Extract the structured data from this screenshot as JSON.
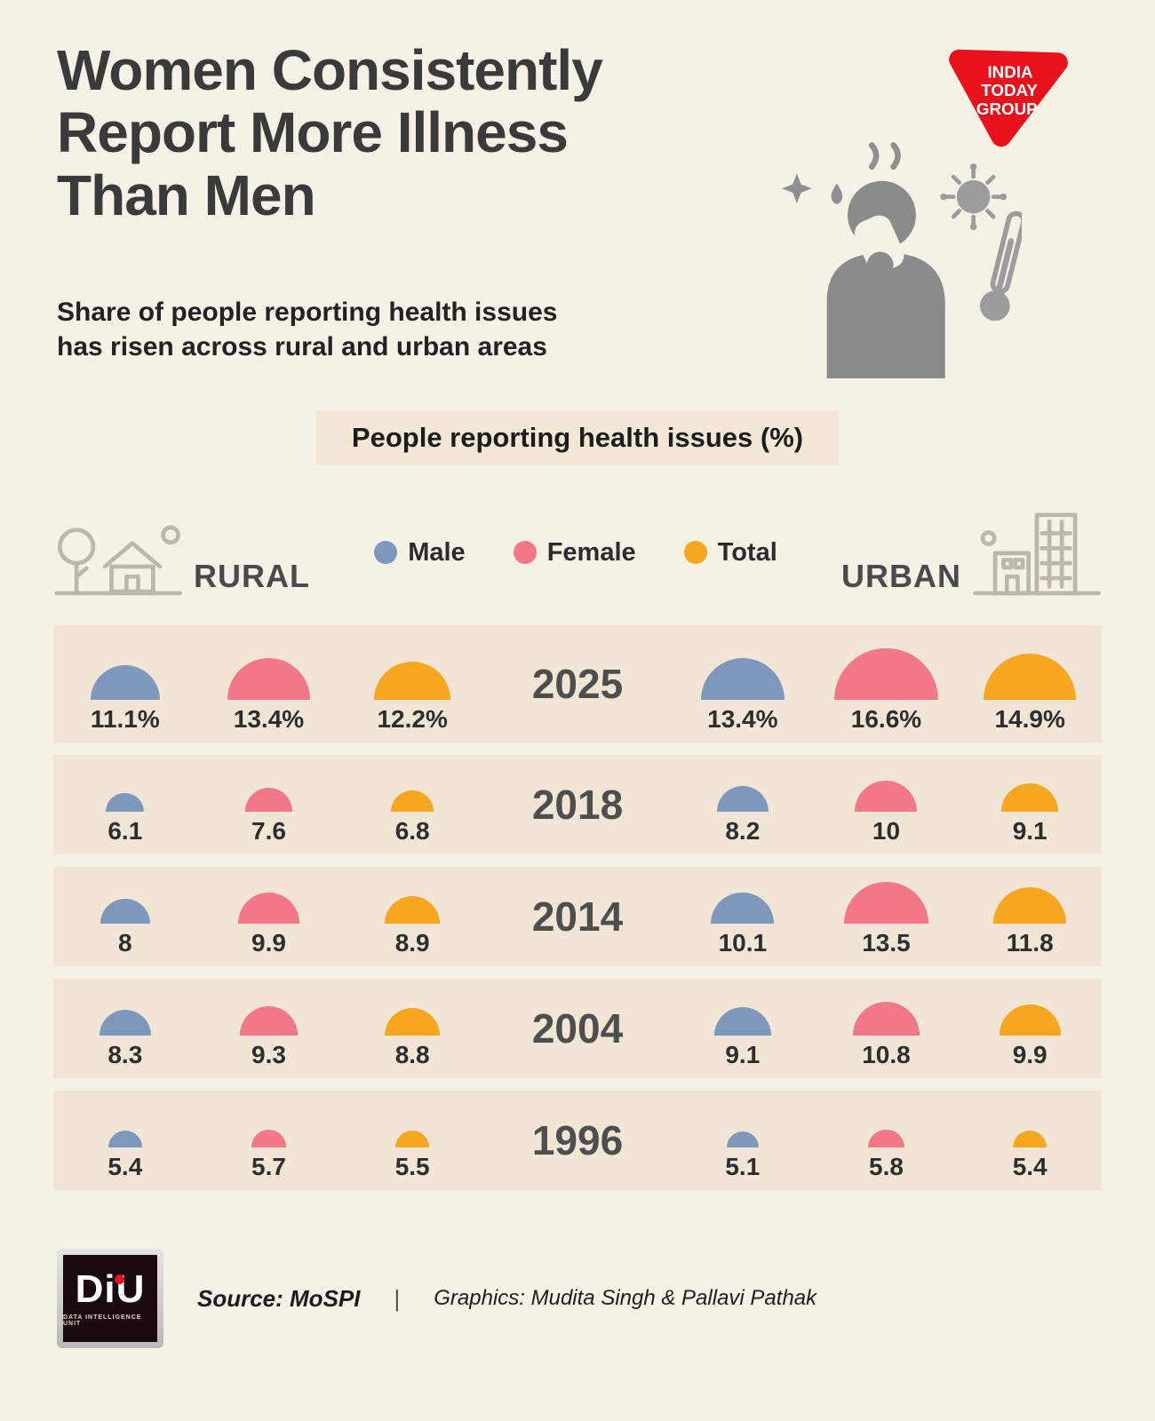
{
  "header": {
    "title_lines": [
      "Women Consistently",
      "Report More Illness",
      "Than Men"
    ],
    "subtitle_lines": [
      "Share of people reporting health issues",
      "has risen across rural and urban areas"
    ],
    "brand": {
      "lines": [
        "INDIA",
        "TODAY",
        "GROUP"
      ],
      "color": "#e8121c"
    }
  },
  "chart_data": {
    "type": "bar",
    "title": "People reporting health issues (%)",
    "unit": "%",
    "group_left": "RURAL",
    "group_right": "URBAN",
    "legend": [
      {
        "label": "Male",
        "color": "#7d98ba"
      },
      {
        "label": "Female",
        "color": "#f27888"
      },
      {
        "label": "Total",
        "color": "#f6a71f"
      }
    ],
    "years": [
      "2025",
      "2018",
      "2014",
      "2004",
      "1996"
    ],
    "series_order": [
      "Male",
      "Female",
      "Total"
    ],
    "rows": [
      {
        "year": "2025",
        "cells": [
          {
            "group": "RURAL",
            "series": "Male",
            "value": 11.1,
            "label": "11.1%"
          },
          {
            "group": "RURAL",
            "series": "Female",
            "value": 13.4,
            "label": "13.4%"
          },
          {
            "group": "RURAL",
            "series": "Total",
            "value": 12.2,
            "label": "12.2%"
          },
          {
            "group": "URBAN",
            "series": "Male",
            "value": 13.4,
            "label": "13.4%"
          },
          {
            "group": "URBAN",
            "series": "Female",
            "value": 16.6,
            "label": "16.6%"
          },
          {
            "group": "URBAN",
            "series": "Total",
            "value": 14.9,
            "label": "14.9%"
          }
        ]
      },
      {
        "year": "2018",
        "cells": [
          {
            "group": "RURAL",
            "series": "Male",
            "value": 6.1,
            "label": "6.1"
          },
          {
            "group": "RURAL",
            "series": "Female",
            "value": 7.6,
            "label": "7.6"
          },
          {
            "group": "RURAL",
            "series": "Total",
            "value": 6.8,
            "label": "6.8"
          },
          {
            "group": "URBAN",
            "series": "Male",
            "value": 8.2,
            "label": "8.2"
          },
          {
            "group": "URBAN",
            "series": "Female",
            "value": 10,
            "label": "10"
          },
          {
            "group": "URBAN",
            "series": "Total",
            "value": 9.1,
            "label": "9.1"
          }
        ]
      },
      {
        "year": "2014",
        "cells": [
          {
            "group": "RURAL",
            "series": "Male",
            "value": 8,
            "label": "8"
          },
          {
            "group": "RURAL",
            "series": "Female",
            "value": 9.9,
            "label": "9.9"
          },
          {
            "group": "RURAL",
            "series": "Total",
            "value": 8.9,
            "label": "8.9"
          },
          {
            "group": "URBAN",
            "series": "Male",
            "value": 10.1,
            "label": "10.1"
          },
          {
            "group": "URBAN",
            "series": "Female",
            "value": 13.5,
            "label": "13.5"
          },
          {
            "group": "URBAN",
            "series": "Total",
            "value": 11.8,
            "label": "11.8"
          }
        ]
      },
      {
        "year": "2004",
        "cells": [
          {
            "group": "RURAL",
            "series": "Male",
            "value": 8.3,
            "label": "8.3"
          },
          {
            "group": "RURAL",
            "series": "Female",
            "value": 9.3,
            "label": "9.3"
          },
          {
            "group": "RURAL",
            "series": "Total",
            "value": 8.8,
            "label": "8.8"
          },
          {
            "group": "URBAN",
            "series": "Male",
            "value": 9.1,
            "label": "9.1"
          },
          {
            "group": "URBAN",
            "series": "Female",
            "value": 10.8,
            "label": "10.8"
          },
          {
            "group": "URBAN",
            "series": "Total",
            "value": 9.9,
            "label": "9.9"
          }
        ]
      },
      {
        "year": "1996",
        "cells": [
          {
            "group": "RURAL",
            "series": "Male",
            "value": 5.4,
            "label": "5.4"
          },
          {
            "group": "RURAL",
            "series": "Female",
            "value": 5.7,
            "label": "5.7"
          },
          {
            "group": "RURAL",
            "series": "Total",
            "value": 5.5,
            "label": "5.5"
          },
          {
            "group": "URBAN",
            "series": "Male",
            "value": 5.1,
            "label": "5.1"
          },
          {
            "group": "URBAN",
            "series": "Female",
            "value": 5.8,
            "label": "5.8"
          },
          {
            "group": "URBAN",
            "series": "Total",
            "value": 5.4,
            "label": "5.4"
          }
        ]
      }
    ]
  },
  "footer": {
    "source": "Source: MoSPI",
    "divider": "|",
    "credits": "Graphics: Mudita Singh & Pallavi Pathak",
    "diu": {
      "name": "DiU",
      "tagline": "DATA INTELLIGENCE UNIT"
    }
  }
}
